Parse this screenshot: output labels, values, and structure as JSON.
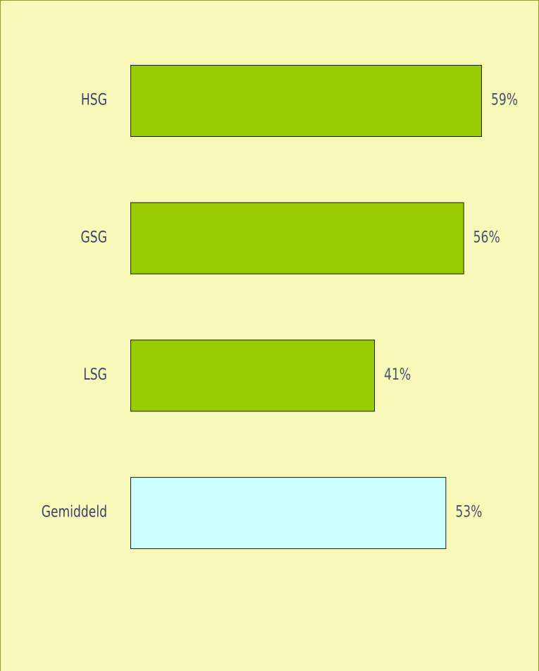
{
  "chart_data": {
    "type": "barh",
    "categories": [
      "HSG",
      "GSG",
      "LSG",
      "Gemiddeld"
    ],
    "values": [
      59,
      56,
      41,
      53
    ],
    "value_labels": [
      "59%",
      "56%",
      "41%",
      "53%"
    ],
    "colors": [
      "#99cc00",
      "#99cc00",
      "#99cc00",
      "#ccffff"
    ]
  }
}
